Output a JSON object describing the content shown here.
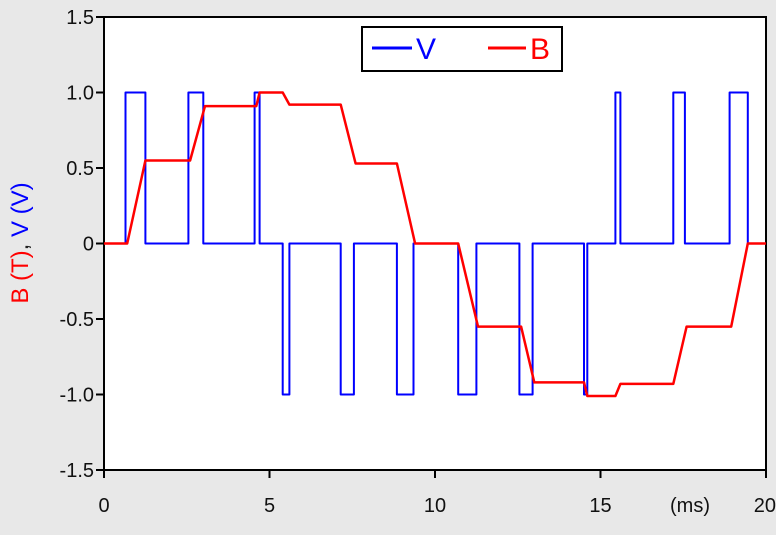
{
  "chart_data": {
    "type": "line",
    "xlim": [
      0,
      20
    ],
    "ylim": [
      -1.5,
      1.5
    ],
    "x_ticks": [
      0,
      5,
      10,
      15,
      20
    ],
    "y_ticks": [
      {
        "value": 1.5,
        "label": "1.5"
      },
      {
        "value": 1.0,
        "label": "1.0"
      },
      {
        "value": 0.5,
        "label": "0.5"
      },
      {
        "value": 0,
        "label": "0"
      },
      {
        "value": -0.5,
        "label": "-0.5"
      },
      {
        "value": -1.0,
        "label": "-1.0"
      },
      {
        "value": -1.5,
        "label": "-1.5"
      }
    ],
    "x_unit": "(ms)",
    "ylabel_parts": [
      {
        "text": "B (T)",
        "color": "#ff0000"
      },
      {
        "text": ", ",
        "color": "#222222"
      },
      {
        "text": "V (V)",
        "color": "#0000ff"
      }
    ],
    "grid": false,
    "legend_position": "top-right",
    "series": [
      {
        "name": "V",
        "color": "#0000ff",
        "step": true,
        "points": [
          [
            0,
            0
          ],
          [
            0.65,
            0
          ],
          [
            0.65,
            1
          ],
          [
            1.25,
            1
          ],
          [
            1.25,
            0
          ],
          [
            2.55,
            0
          ],
          [
            2.55,
            1
          ],
          [
            3.0,
            1
          ],
          [
            3.0,
            0
          ],
          [
            4.55,
            0
          ],
          [
            4.55,
            1
          ],
          [
            4.7,
            1
          ],
          [
            4.7,
            0
          ],
          [
            5.4,
            0
          ],
          [
            5.4,
            -1
          ],
          [
            5.6,
            -1
          ],
          [
            5.6,
            0
          ],
          [
            7.15,
            0
          ],
          [
            7.15,
            -1
          ],
          [
            7.55,
            -1
          ],
          [
            7.55,
            0
          ],
          [
            8.85,
            0
          ],
          [
            8.85,
            -1
          ],
          [
            9.35,
            -1
          ],
          [
            9.35,
            0
          ],
          [
            10.7,
            0
          ],
          [
            10.7,
            -1
          ],
          [
            11.25,
            -1
          ],
          [
            11.25,
            0
          ],
          [
            12.55,
            0
          ],
          [
            12.55,
            -1
          ],
          [
            12.95,
            -1
          ],
          [
            12.95,
            0
          ],
          [
            14.5,
            0
          ],
          [
            14.5,
            -1
          ],
          [
            14.6,
            -1
          ],
          [
            14.6,
            0
          ],
          [
            15.45,
            0
          ],
          [
            15.45,
            1
          ],
          [
            15.6,
            1
          ],
          [
            15.6,
            0
          ],
          [
            17.2,
            0
          ],
          [
            17.2,
            1
          ],
          [
            17.55,
            1
          ],
          [
            17.55,
            0
          ],
          [
            18.9,
            0
          ],
          [
            18.9,
            1
          ],
          [
            19.45,
            1
          ],
          [
            19.45,
            0
          ],
          [
            20,
            0
          ]
        ]
      },
      {
        "name": "B",
        "color": "#ff0000",
        "step": false,
        "points": [
          [
            0,
            0
          ],
          [
            0.7,
            0
          ],
          [
            1.25,
            0.55
          ],
          [
            2.6,
            0.55
          ],
          [
            3.05,
            0.91
          ],
          [
            4.6,
            0.91
          ],
          [
            4.7,
            1.0
          ],
          [
            5.4,
            1.0
          ],
          [
            5.6,
            0.92
          ],
          [
            7.15,
            0.92
          ],
          [
            7.6,
            0.53
          ],
          [
            8.85,
            0.53
          ],
          [
            9.4,
            0.0
          ],
          [
            10.7,
            0.0
          ],
          [
            11.3,
            -0.55
          ],
          [
            12.6,
            -0.55
          ],
          [
            13.0,
            -0.92
          ],
          [
            14.5,
            -0.92
          ],
          [
            14.6,
            -1.01
          ],
          [
            15.45,
            -1.01
          ],
          [
            15.6,
            -0.93
          ],
          [
            17.2,
            -0.93
          ],
          [
            17.6,
            -0.55
          ],
          [
            18.95,
            -0.55
          ],
          [
            19.45,
            0.0
          ],
          [
            20,
            0.0
          ]
        ]
      }
    ]
  }
}
